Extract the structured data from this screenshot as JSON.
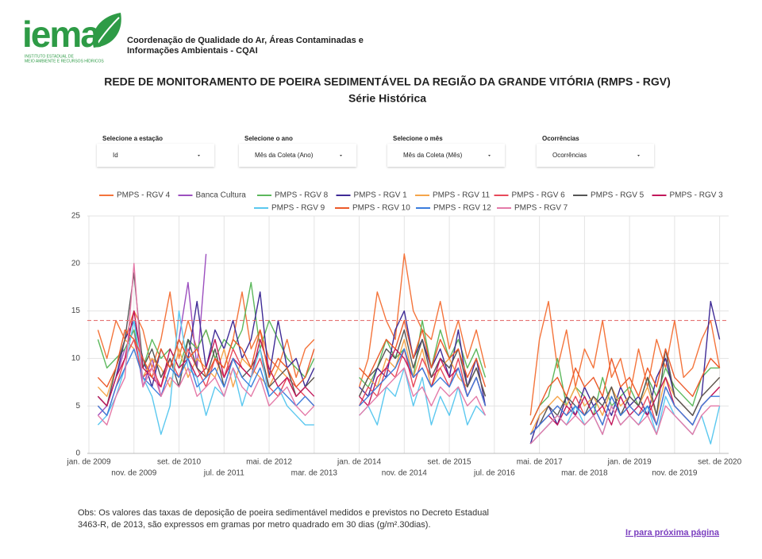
{
  "header": {
    "logo": "iema",
    "logo_subtitle": [
      "INSTITUTO ESTADUAL DE",
      "MEIO AMBIENTE E RECURSOS HÍDRICOS"
    ],
    "org": [
      "Coordenação de Qualidade do Ar, Áreas Contaminadas e",
      "Informações Ambientais - CQAI"
    ]
  },
  "filters": [
    {
      "label": "Selecione a estação",
      "value": "Id"
    },
    {
      "label": "Selecione o ano",
      "value": "Mês da Coleta (Ano)"
    },
    {
      "label": "Selecione o mês",
      "value": "Mês da Coleta (Mês)"
    },
    {
      "label": "Ocorrências",
      "value": "Ocorrências"
    }
  ],
  "note": [
    "Obs: Os valores das taxas de deposição de poeira sedimentável  medidos e previstos no Decreto Estadual",
    "3463-R, de 2013, são expressos em gramas por metro quadrado em 30 dias (g/m².30dias)."
  ],
  "link": "Ir para próxima página",
  "chart_data": {
    "type": "line",
    "title": [
      "REDE DE MONITORAMENTO DE POEIRA SEDIMENTÁVEL DA REGIÃO DA GRANDE VITÓRIA (RMPS - RGV)",
      "Série Histórica"
    ],
    "x": [
      "2009-03",
      "2009-05",
      "2009-07",
      "2009-09",
      "2009-11",
      "2010-01",
      "2010-03",
      "2010-05",
      "2010-07",
      "2010-09",
      "2010-11",
      "2011-01",
      "2011-03",
      "2011-05",
      "2011-07",
      "2011-09",
      "2011-11",
      "2012-01",
      "2012-03",
      "2012-05",
      "2012-07",
      "2012-09",
      "2012-11",
      "2013-01",
      "2013-03",
      "2013-05",
      "2013-07",
      "2013-09",
      "2013-11",
      "2014-01",
      "2014-03",
      "2014-05",
      "2014-07",
      "2014-09",
      "2014-11",
      "2015-01",
      "2015-03",
      "2015-05",
      "2015-07",
      "2015-09",
      "2015-11",
      "2016-01",
      "2016-03",
      "2016-05",
      "2016-07",
      "2016-09",
      "2016-11",
      "2017-01",
      "2017-03",
      "2017-05",
      "2017-07",
      "2017-09",
      "2017-11",
      "2018-01",
      "2018-03",
      "2018-05",
      "2018-07",
      "2018-09",
      "2018-11",
      "2019-01",
      "2019-03",
      "2019-05",
      "2019-07",
      "2019-09",
      "2019-11",
      "2020-01",
      "2020-03",
      "2020-05",
      "2020-07",
      "2020-09"
    ],
    "xlim": [
      "2009-01",
      "2020-11"
    ],
    "xticks": [
      {
        "value": "2009-01",
        "label": "jan. de 2009"
      },
      {
        "value": "2009-11",
        "label": "nov. de 2009"
      },
      {
        "value": "2010-09",
        "label": "set. de 2010"
      },
      {
        "value": "2011-07",
        "label": "jul. de 2011"
      },
      {
        "value": "2012-05",
        "label": "mai. de 2012"
      },
      {
        "value": "2013-03",
        "label": "mar. de 2013"
      },
      {
        "value": "2014-01",
        "label": "jan. de 2014"
      },
      {
        "value": "2014-11",
        "label": "nov. de 2014"
      },
      {
        "value": "2015-09",
        "label": "set. de 2015"
      },
      {
        "value": "2016-07",
        "label": "jul. de 2016"
      },
      {
        "value": "2017-05",
        "label": "mai. de 2017"
      },
      {
        "value": "2018-03",
        "label": "mar. de 2018"
      },
      {
        "value": "2019-01",
        "label": "jan. de 2019"
      },
      {
        "value": "2019-11",
        "label": "nov. de 2019"
      },
      {
        "value": "2020-09",
        "label": "set. de 2020"
      }
    ],
    "ylim": [
      0,
      25
    ],
    "yticks": [
      0,
      5,
      10,
      15,
      20,
      25
    ],
    "grid": true,
    "reference_line": {
      "value": 14,
      "color": "#e57373"
    },
    "series": [
      {
        "name": "PMPS - RGV 4",
        "color": "#f4743b",
        "values": [
          13,
          10,
          14,
          12,
          15,
          13,
          9,
          12,
          17,
          10,
          14,
          11,
          13,
          10,
          9,
          12,
          17,
          11,
          13,
          10,
          9,
          12,
          8,
          11,
          12,
          null,
          null,
          null,
          null,
          7,
          10,
          17,
          14,
          12,
          21,
          15,
          13,
          12,
          16,
          11,
          14,
          10,
          13,
          9,
          null,
          null,
          null,
          null,
          4,
          12,
          16,
          9,
          13,
          7,
          11,
          9,
          14,
          8,
          10,
          6,
          11,
          7,
          12,
          9,
          14,
          8,
          9,
          12,
          14,
          9
        ]
      },
      {
        "name": "Banca Cultura",
        "color": "#9c4fbf",
        "values": [
          4,
          5,
          8,
          11,
          13,
          7,
          10,
          6,
          9,
          12,
          18,
          9,
          21,
          null,
          null,
          null,
          null,
          null,
          null,
          null,
          null,
          null,
          null,
          null,
          null,
          null,
          null,
          null,
          null,
          null,
          null,
          null,
          null,
          null,
          null,
          null,
          null,
          null,
          null,
          null,
          null,
          null,
          null,
          null,
          null,
          null,
          null,
          null,
          null,
          null,
          null,
          null,
          null,
          null,
          null,
          null,
          null,
          null,
          null,
          null,
          null,
          null,
          null,
          null,
          null,
          null,
          null,
          null,
          null,
          null
        ]
      },
      {
        "name": "PMPS - RGV 8",
        "color": "#5cb85c",
        "values": [
          12,
          9,
          10,
          11,
          13,
          9,
          12,
          10,
          11,
          9,
          12,
          11,
          13,
          10,
          12,
          11,
          13,
          18,
          11,
          14,
          12,
          10,
          9,
          8,
          10,
          null,
          null,
          null,
          null,
          8,
          7,
          9,
          12,
          10,
          11,
          8,
          14,
          9,
          13,
          10,
          12,
          9,
          11,
          8,
          null,
          null,
          null,
          null,
          3,
          5,
          6,
          10,
          5,
          7,
          6,
          4,
          8,
          5,
          6,
          7,
          5,
          8,
          6,
          9,
          7,
          6,
          5,
          8,
          9,
          9
        ]
      },
      {
        "name": "PMPS - RGV 1",
        "color": "#3f2b96",
        "values": [
          6,
          5,
          8,
          12,
          14,
          10,
          7,
          11,
          9,
          12,
          10,
          16,
          9,
          13,
          11,
          14,
          10,
          12,
          17,
          8,
          14,
          9,
          10,
          7,
          9,
          null,
          null,
          null,
          null,
          7,
          6,
          9,
          8,
          13,
          15,
          10,
          12,
          9,
          11,
          8,
          13,
          7,
          10,
          5,
          null,
          null,
          null,
          null,
          1,
          4,
          5,
          3,
          6,
          4,
          7,
          5,
          6,
          4,
          7,
          5,
          6,
          4,
          8,
          10,
          6,
          5,
          4,
          6,
          16,
          12
        ]
      },
      {
        "name": "PMPS - RGV 11",
        "color": "#f5a54a",
        "values": [
          7,
          6,
          9,
          12,
          11,
          8,
          10,
          9,
          7,
          11,
          8,
          10,
          9,
          8,
          11,
          7,
          10,
          9,
          8,
          7,
          9,
          8,
          6,
          7,
          8,
          null,
          null,
          null,
          null,
          6,
          8,
          7,
          10,
          9,
          12,
          8,
          11,
          7,
          9,
          10,
          8,
          7,
          9,
          6,
          null,
          null,
          null,
          null,
          2,
          4,
          5,
          6,
          5,
          7,
          5,
          6,
          4,
          7,
          5,
          6,
          5,
          7,
          4,
          8,
          6,
          5,
          4,
          6,
          7,
          8
        ]
      },
      {
        "name": "PMPS - RGV 6",
        "color": "#e8495a",
        "values": [
          5,
          4,
          7,
          10,
          12,
          8,
          9,
          7,
          10,
          8,
          11,
          9,
          7,
          10,
          8,
          11,
          9,
          8,
          10,
          7,
          6,
          8,
          7,
          6,
          5,
          null,
          null,
          null,
          null,
          5,
          7,
          6,
          9,
          8,
          11,
          7,
          10,
          8,
          9,
          7,
          10,
          6,
          8,
          5,
          null,
          null,
          null,
          null,
          2,
          3,
          4,
          5,
          4,
          6,
          4,
          5,
          3,
          6,
          4,
          5,
          4,
          6,
          3,
          7,
          5,
          4,
          3,
          5,
          6,
          7
        ]
      },
      {
        "name": "PMPS - RGV 5",
        "color": "#555555",
        "values": [
          6,
          5,
          9,
          12,
          19,
          9,
          11,
          8,
          10,
          7,
          12,
          9,
          8,
          11,
          7,
          10,
          8,
          9,
          11,
          7,
          8,
          9,
          6,
          7,
          8,
          null,
          null,
          null,
          null,
          6,
          8,
          9,
          11,
          10,
          13,
          9,
          12,
          8,
          10,
          9,
          11,
          7,
          9,
          6,
          null,
          null,
          null,
          null,
          2,
          3,
          5,
          4,
          6,
          5,
          4,
          6,
          5,
          7,
          4,
          6,
          5,
          8,
          4,
          11,
          6,
          5,
          4,
          6,
          7,
          8
        ]
      },
      {
        "name": "PMPS - RGV 3",
        "color": "#c2185b",
        "values": [
          6,
          5,
          8,
          10,
          15,
          9,
          8,
          7,
          11,
          9,
          10,
          8,
          9,
          12,
          8,
          10,
          9,
          8,
          12,
          9,
          7,
          8,
          6,
          7,
          6,
          null,
          null,
          null,
          null,
          6,
          5,
          8,
          9,
          11,
          10,
          8,
          9,
          7,
          10,
          8,
          9,
          6,
          8,
          5,
          null,
          null,
          null,
          null,
          2,
          3,
          4,
          3,
          5,
          4,
          6,
          4,
          5,
          3,
          6,
          4,
          5,
          4,
          6,
          8,
          5,
          4,
          3,
          5,
          6,
          7
        ]
      },
      {
        "name": "PMPS - RGV 9",
        "color": "#5bc8ef",
        "values": [
          3,
          4,
          6,
          9,
          14,
          8,
          6,
          2,
          5,
          15,
          9,
          8,
          4,
          7,
          6,
          9,
          5,
          8,
          11,
          6,
          7,
          5,
          4,
          3,
          3,
          null,
          null,
          null,
          null,
          4,
          5,
          3,
          7,
          6,
          9,
          5,
          8,
          3,
          6,
          4,
          7,
          3,
          5,
          4,
          null,
          null,
          null,
          null,
          1,
          2,
          3,
          4,
          3,
          5,
          3,
          4,
          2,
          5,
          3,
          4,
          3,
          5,
          2,
          6,
          4,
          3,
          2,
          4,
          1,
          5
        ]
      },
      {
        "name": "PMPS - RGV 10",
        "color": "#ec5a2a",
        "values": [
          8,
          7,
          9,
          13,
          12,
          10,
          8,
          11,
          9,
          12,
          10,
          11,
          8,
          10,
          9,
          12,
          11,
          9,
          13,
          8,
          10,
          9,
          7,
          8,
          11,
          null,
          null,
          null,
          null,
          9,
          8,
          10,
          12,
          11,
          14,
          10,
          13,
          9,
          12,
          10,
          11,
          8,
          10,
          7,
          null,
          null,
          null,
          null,
          3,
          5,
          7,
          8,
          6,
          9,
          7,
          8,
          6,
          10,
          7,
          8,
          6,
          9,
          7,
          11,
          8,
          7,
          6,
          8,
          10,
          9
        ]
      },
      {
        "name": "PMPS - RGV 12",
        "color": "#3b7ddd",
        "values": [
          5,
          4,
          7,
          9,
          11,
          8,
          7,
          6,
          9,
          8,
          10,
          7,
          8,
          9,
          7,
          10,
          8,
          7,
          9,
          6,
          7,
          6,
          5,
          6,
          5,
          null,
          null,
          null,
          null,
          5,
          6,
          7,
          8,
          9,
          11,
          8,
          9,
          7,
          8,
          7,
          9,
          6,
          8,
          5,
          null,
          null,
          null,
          null,
          2,
          3,
          4,
          5,
          4,
          5,
          4,
          5,
          3,
          6,
          4,
          5,
          4,
          5,
          3,
          7,
          5,
          4,
          3,
          5,
          6,
          6
        ]
      },
      {
        "name": "PMPS - RGV 7",
        "color": "#e47aa8",
        "values": [
          4,
          3,
          6,
          8,
          20,
          7,
          9,
          6,
          8,
          7,
          9,
          6,
          7,
          8,
          6,
          9,
          7,
          6,
          8,
          5,
          6,
          7,
          5,
          4,
          5,
          null,
          null,
          null,
          null,
          4,
          5,
          6,
          7,
          8,
          9,
          6,
          7,
          5,
          7,
          6,
          7,
          5,
          6,
          4,
          null,
          null,
          null,
          null,
          1,
          2,
          3,
          4,
          3,
          4,
          3,
          4,
          2,
          5,
          3,
          4,
          3,
          4,
          2,
          5,
          4,
          3,
          2,
          4,
          5,
          5
        ]
      }
    ]
  }
}
